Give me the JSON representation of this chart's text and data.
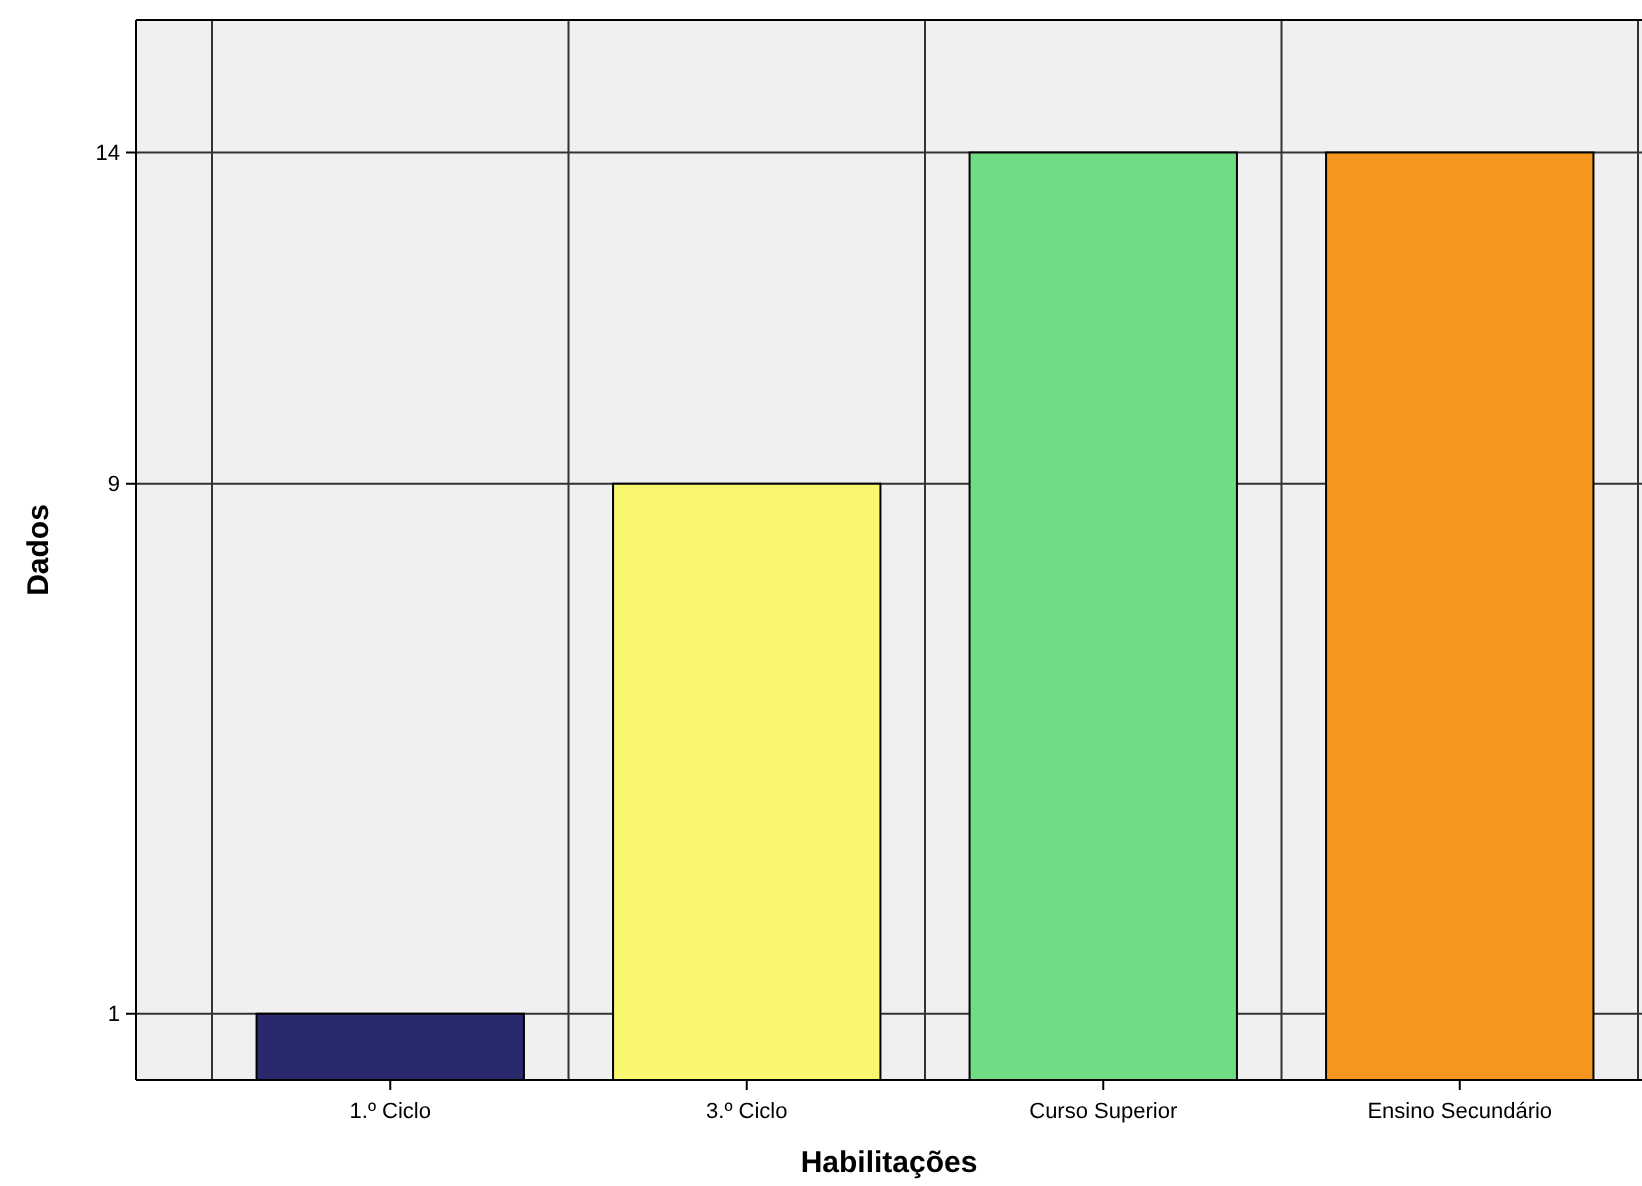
{
  "chart_data": {
    "type": "bar",
    "xlabel": "Habilitações",
    "ylabel": "Dados",
    "categories": [
      "1.º Ciclo",
      "3.º Ciclo",
      "Curso Superior",
      "Ensino Secundário"
    ],
    "values": [
      1,
      9,
      14,
      14
    ],
    "colors": [
      "#29296e",
      "#f9f770",
      "#70dd85",
      "#f7961e"
    ],
    "ylim": [
      0,
      16
    ],
    "yticks": [
      1,
      9,
      14
    ],
    "grid": true
  }
}
